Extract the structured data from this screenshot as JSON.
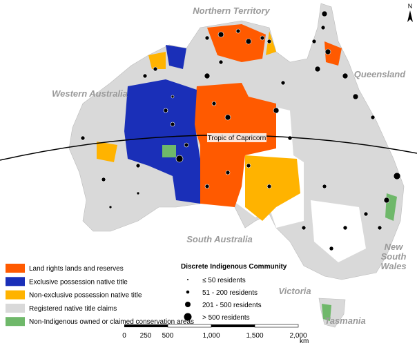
{
  "map": {
    "north_arrow": "N",
    "tropic_label": "Tropic of Capricorn",
    "regions": {
      "northern_territory": "Northern Territory",
      "queensland": "Queensland",
      "western_australia": "Western Australia",
      "south_australia": "South Australia",
      "new_south_wales": [
        "New",
        "South",
        "Wales"
      ],
      "victoria": "Victoria",
      "tasmania": "Tasmania"
    }
  },
  "legend_land": {
    "items": [
      {
        "label": "Land rights lands and reserves",
        "color": "#ff5a00"
      },
      {
        "label": "Exclusive possession native title",
        "color": "#1a2fb8"
      },
      {
        "label": "Non-exclusive possession native title",
        "color": "#ffb300"
      },
      {
        "label": "Registered native title claims",
        "color": "#d9d9d9"
      },
      {
        "label": "Non-Indigenous owned or claimed conservation areas",
        "color": "#6fb86a"
      }
    ]
  },
  "legend_community": {
    "title": "Discrete Indigenous Community",
    "items": [
      "≤ 50 residents",
      "51 - 200 residents",
      "201 - 500 residents",
      "> 500 residents"
    ]
  },
  "scale_bar": {
    "labels": [
      "0",
      "250",
      "500",
      "1,000",
      "1,500",
      "2,000"
    ],
    "unit": "km"
  }
}
